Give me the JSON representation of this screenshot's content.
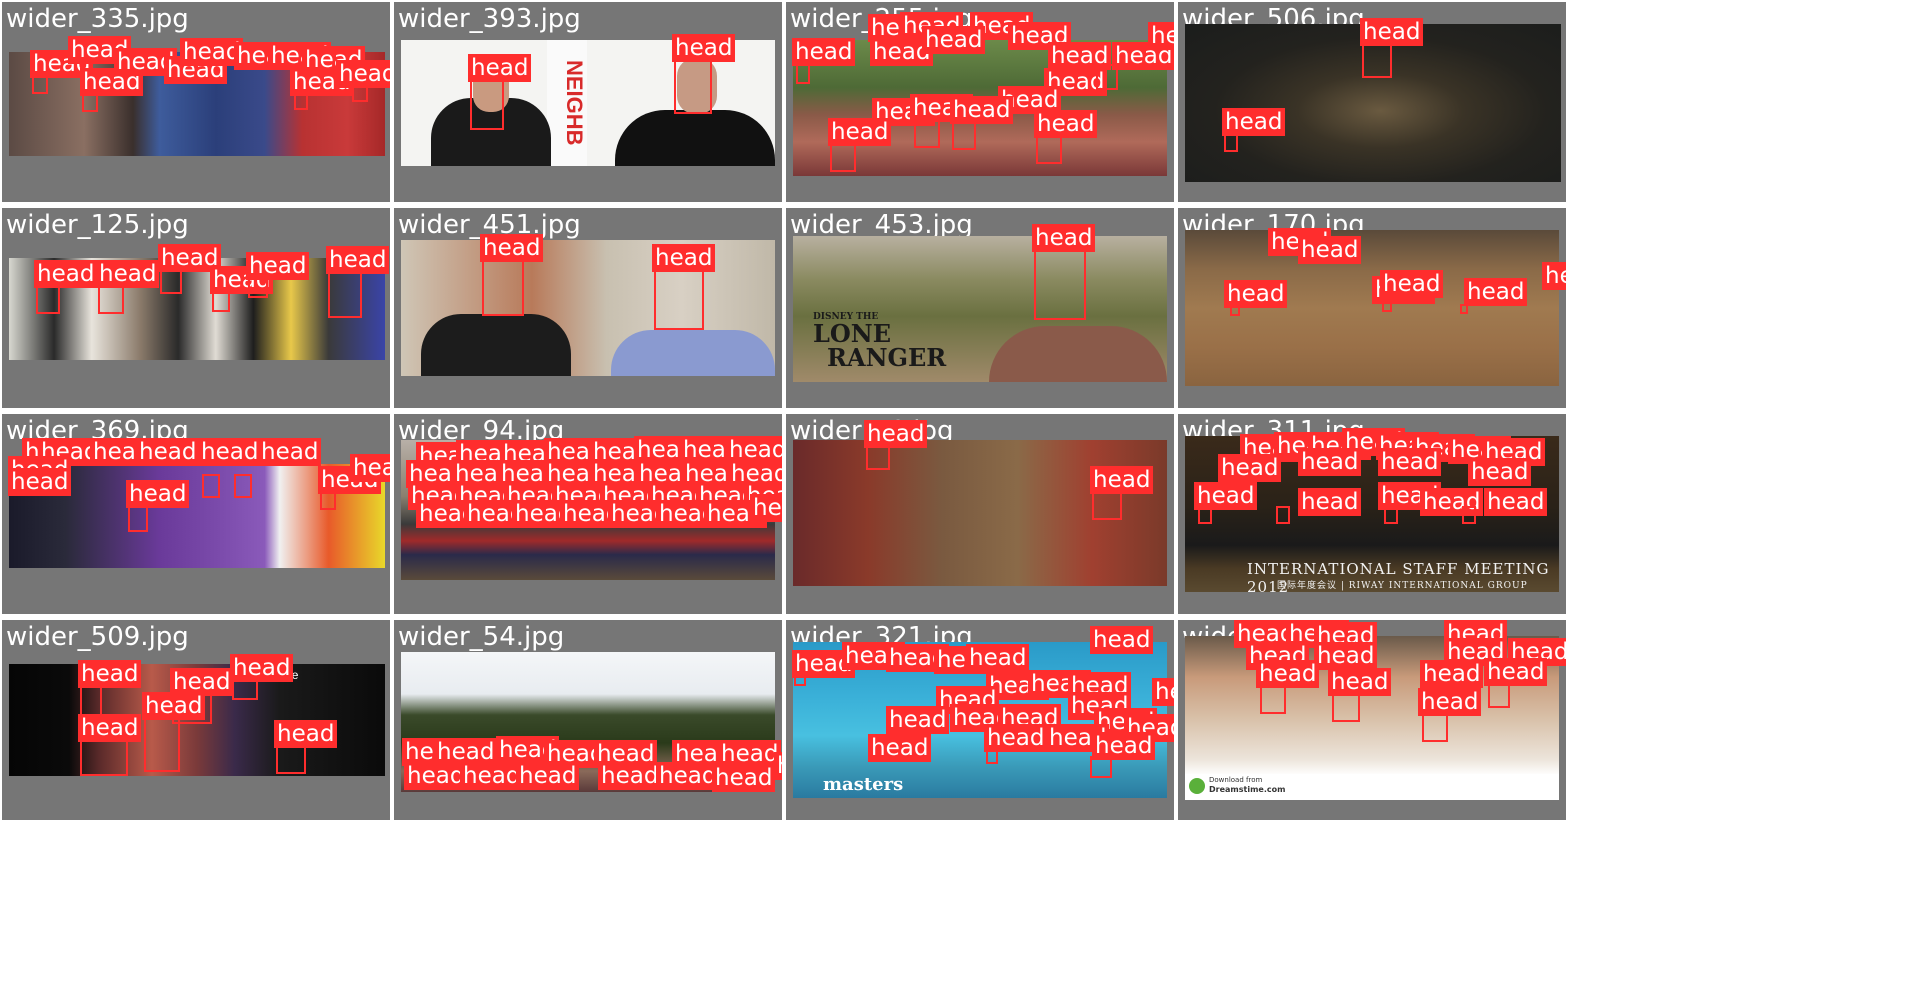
{
  "label_text": "head",
  "box_color": "#ff2d2d",
  "tile_bg": "#767676",
  "tiles": [
    {
      "name": "wider_335.jpg",
      "icon": "photo-group-of-women"
    },
    {
      "name": "wider_393.jpg",
      "icon": "photo-interview-two-people",
      "sign_text": "NEIGHB"
    },
    {
      "name": "wider_255.jpg",
      "icon": "photo-crowd-selfie"
    },
    {
      "name": "wider_506.jpg",
      "icon": "photo-armored-knight"
    },
    {
      "name": "wider_125.jpg",
      "icon": "photo-group-classroom"
    },
    {
      "name": "wider_451.jpg",
      "icon": "photo-two-men-couch"
    },
    {
      "name": "wider_453.jpg",
      "icon": "photo-man-desert",
      "logo_small": "DISNEY THE",
      "logo_big1": "LONE",
      "logo_big2": "RANGER"
    },
    {
      "name": "wider_170.jpg",
      "icon": "photo-street-crowd"
    },
    {
      "name": "wider_369.jpg",
      "icon": "photo-mvp-group"
    },
    {
      "name": "wider_94.jpg",
      "icon": "photo-rows-of-soldiers"
    },
    {
      "name": "wider_4?.jpg",
      "icon": "photo-mud-fight"
    },
    {
      "name": "wider_311.jpg",
      "icon": "photo-staff-meeting",
      "banner": "INTERNATIONAL STAFF MEETING 2012",
      "banner_sub": "国际年度会议 | RIWAY INTERNATIONAL GROUP"
    },
    {
      "name": "wider_509.jpg",
      "icon": "photo-party-crowd",
      "brand": "pure people"
    },
    {
      "name": "wider_54.jpg",
      "icon": "photo-trees-crowd"
    },
    {
      "name": "wider_321.jpg",
      "icon": "photo-underwater-swimmers",
      "caption": "masters"
    },
    {
      "name": "wider_???.jpg",
      "icon": "photo-cheering-crowd",
      "footer1": "Download from",
      "footer2": "Dreamstime.com"
    }
  ]
}
